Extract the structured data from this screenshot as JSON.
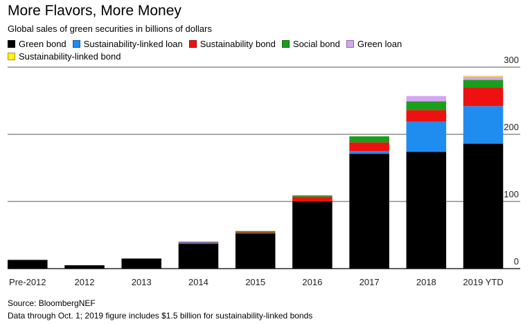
{
  "chart_data": {
    "type": "bar",
    "stacked": true,
    "title": "More Flavors, More Money",
    "subtitle": "Global sales of green securities in billions of dollars",
    "categories": [
      "Pre-2012",
      "2012",
      "2013",
      "2014",
      "2015",
      "2016",
      "2017",
      "2018",
      "2019 YTD"
    ],
    "series": [
      {
        "name": "Green bond",
        "color": "#000000",
        "values": [
          13,
          5,
          15,
          37,
          52,
          100,
          171,
          174,
          186
        ]
      },
      {
        "name": "Sustainability-linked loan",
        "color": "#1f8cf0",
        "values": [
          0,
          0,
          0,
          2,
          0,
          0,
          4,
          45,
          56
        ]
      },
      {
        "name": "Sustainability bond",
        "color": "#ee1111",
        "values": [
          0,
          0,
          0,
          1,
          2,
          7,
          13,
          17,
          28
        ]
      },
      {
        "name": "Social bond",
        "color": "#1b9e1b",
        "values": [
          0,
          0,
          0,
          0,
          2,
          2,
          9,
          13,
          11
        ]
      },
      {
        "name": "Green loan",
        "color": "#d4a5f0",
        "values": [
          0,
          0,
          0,
          0,
          0,
          0,
          0,
          8,
          5
        ]
      },
      {
        "name": "Sustainability-linked bond",
        "color": "#ffef1a",
        "values": [
          0,
          0,
          0,
          0,
          0,
          0,
          0,
          0,
          1.5
        ]
      }
    ],
    "yticks": [
      0,
      100,
      200,
      300
    ],
    "ylim": [
      0,
      300
    ],
    "axis_side": "right",
    "grid": true,
    "legend_position": "top"
  },
  "source": "Source: BloombergNEF",
  "note": "Data through Oct. 1; 2019 figure includes $1.5 billion for sustainability-linked bonds"
}
